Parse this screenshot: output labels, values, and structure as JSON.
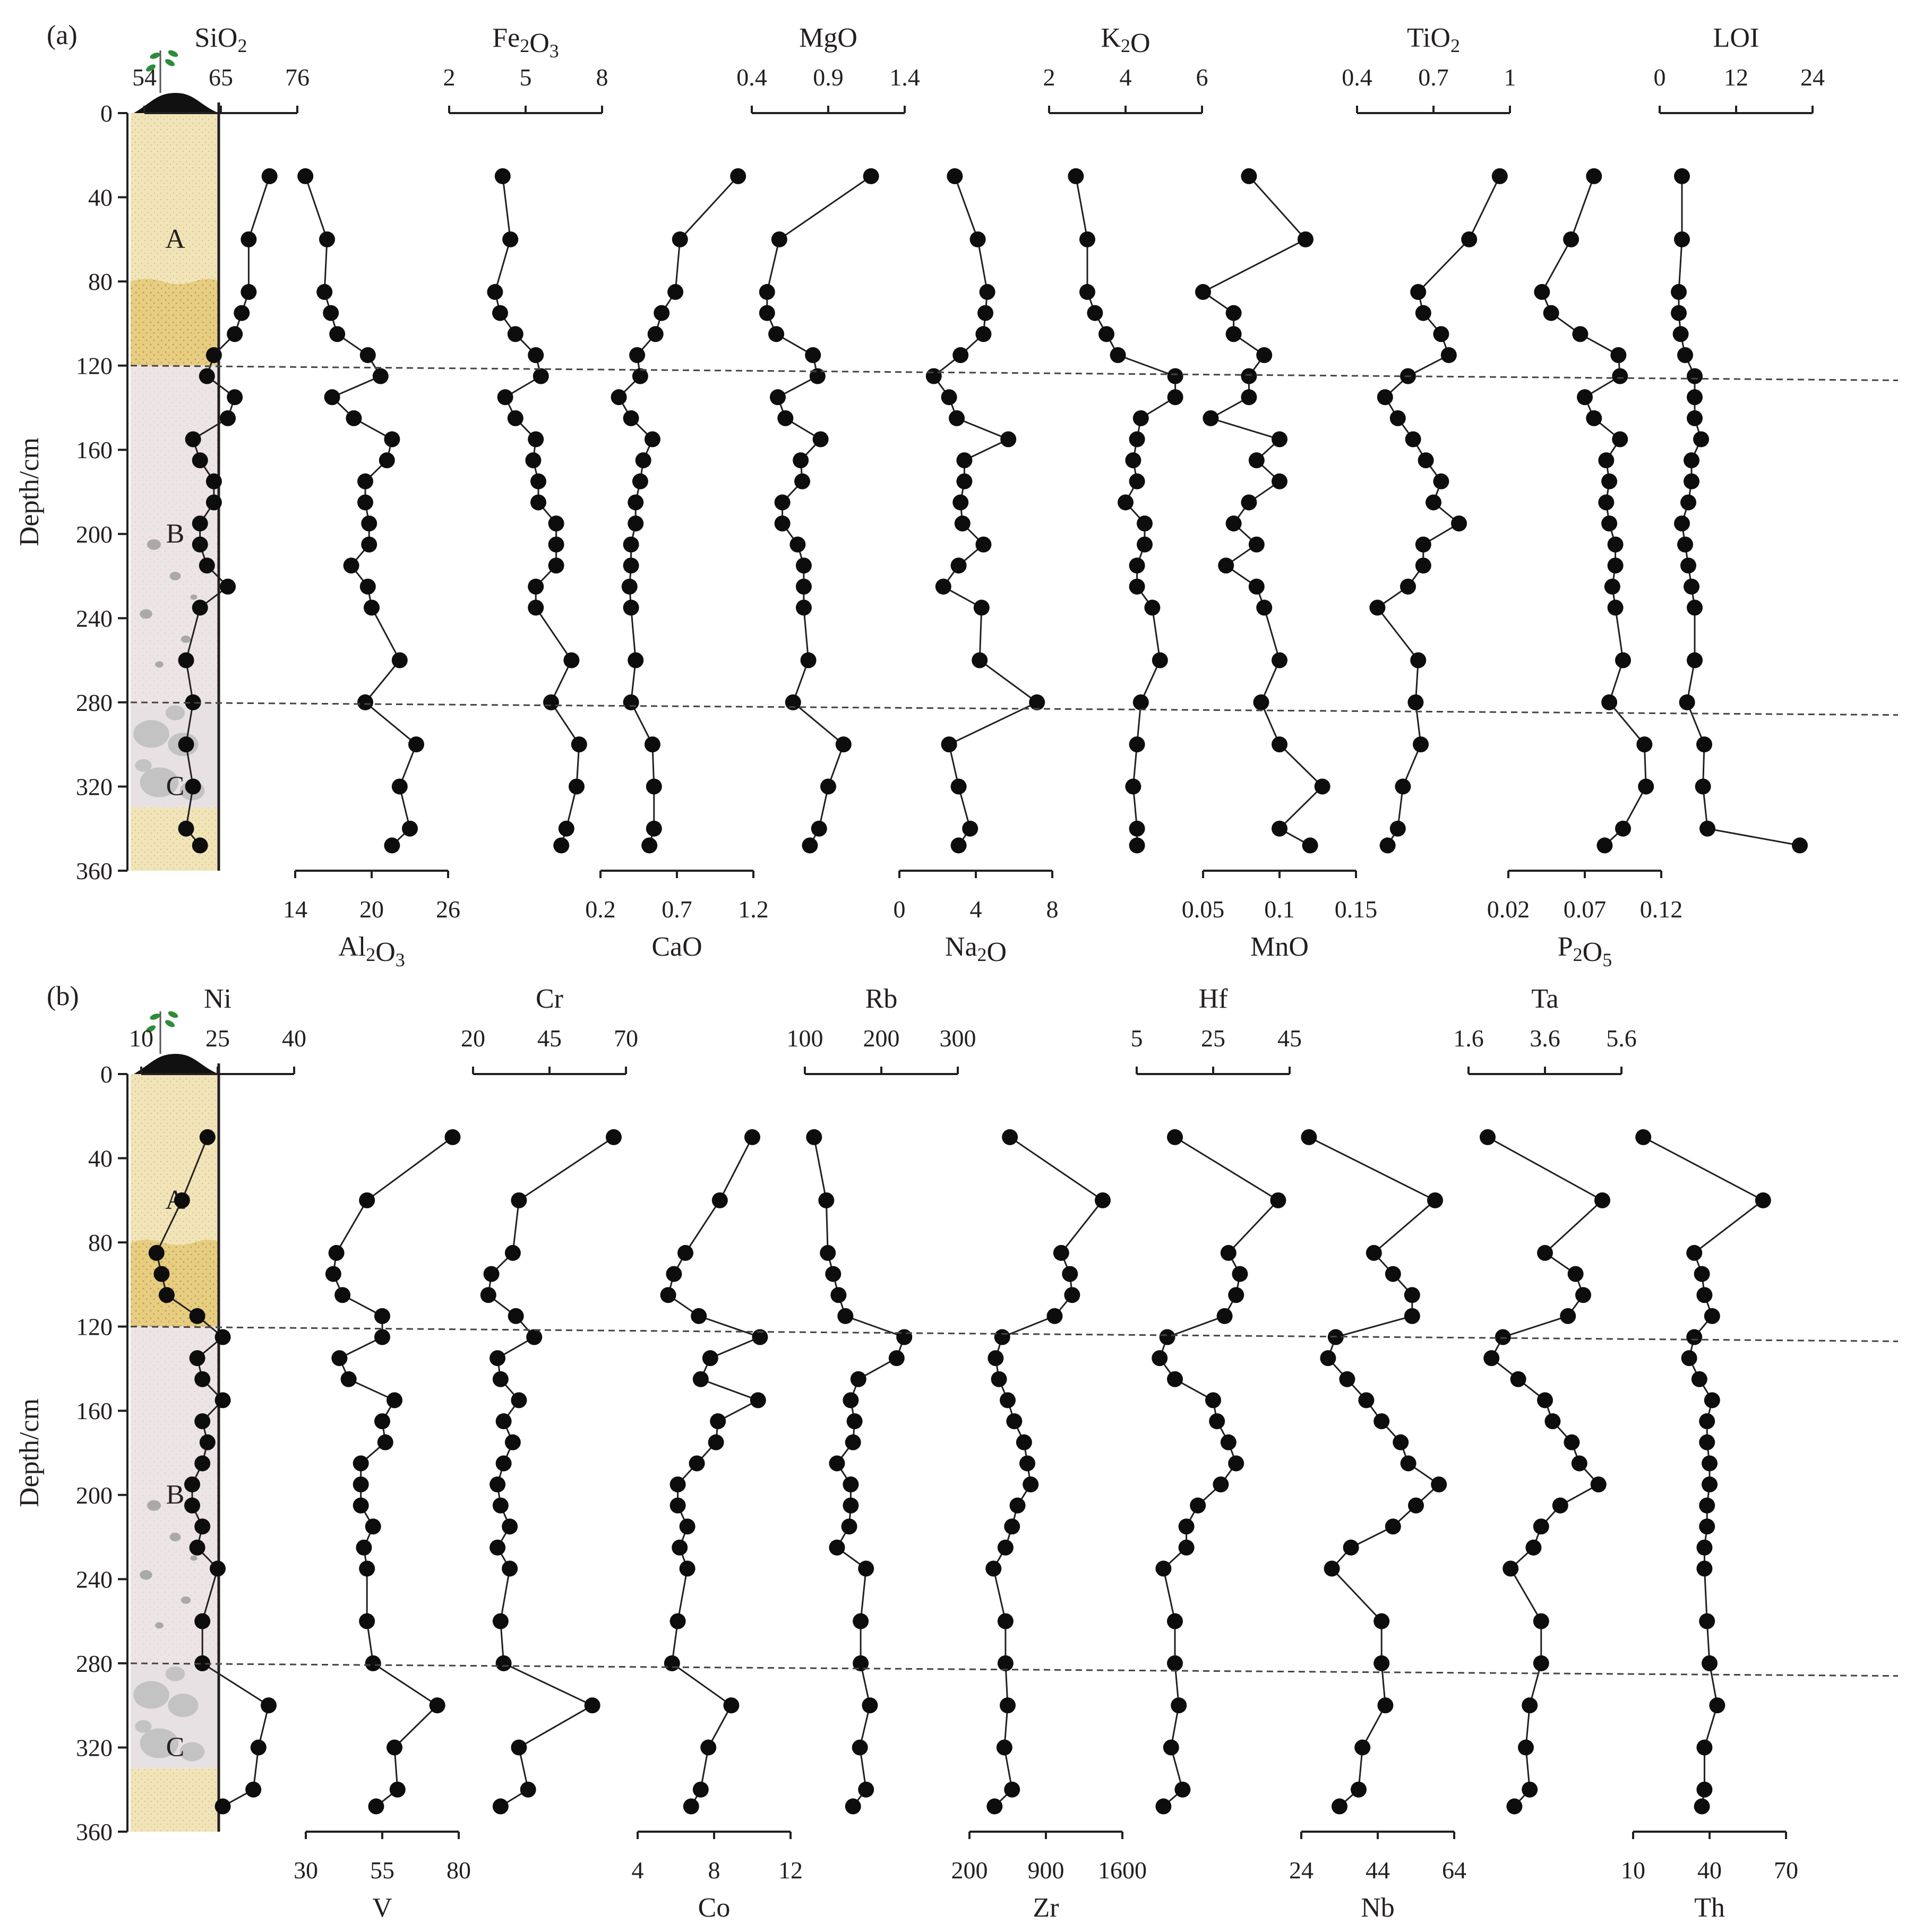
{
  "chart_data": [
    {
      "type": "line",
      "panel_label": "(a)",
      "ylabel": "Depth/cm",
      "ylim": [
        0,
        360
      ],
      "y_ticks": [
        "0",
        "40",
        "80",
        "120",
        "160",
        "200",
        "240",
        "280",
        "320",
        "360"
      ],
      "horizons": [
        "A",
        "B",
        "C"
      ],
      "boundaries": [
        [
          120,
          127
        ],
        [
          280,
          286
        ]
      ],
      "sample_depths": [
        30,
        60,
        85,
        95,
        105,
        115,
        125,
        135,
        145,
        155,
        165,
        175,
        185,
        195,
        205,
        215,
        225,
        235,
        260,
        280,
        300,
        320,
        340,
        348
      ],
      "series": [
        {
          "name": "SiO2",
          "sub": "2",
          "axis": "top",
          "ticks": [
            "54",
            "65",
            "76"
          ],
          "range": [
            54,
            76
          ],
          "values": [
            72,
            69,
            69,
            68,
            67,
            64,
            63,
            67,
            66,
            61,
            62,
            64,
            64,
            62,
            62,
            63,
            66,
            62,
            60,
            61,
            60,
            61,
            60,
            62
          ]
        },
        {
          "name": "Al2O3",
          "sub": "2,3",
          "axis": "bottom",
          "ticks": [
            "14",
            "20",
            "26"
          ],
          "range": [
            14,
            26
          ],
          "values": [
            14.8,
            16.5,
            16.3,
            16.8,
            17.3,
            19.7,
            20.7,
            16.9,
            18.6,
            21.6,
            21.2,
            19.5,
            19.5,
            19.8,
            19.8,
            18.4,
            19.7,
            20.0,
            22.2,
            19.5,
            23.5,
            22.2,
            23.0,
            21.6
          ]
        },
        {
          "name": "Fe2O3",
          "sub": "2,3",
          "axis": "top",
          "ticks": [
            "2",
            "5",
            "8"
          ],
          "range": [
            2,
            8
          ],
          "values": [
            4.1,
            4.4,
            3.8,
            4.0,
            4.6,
            5.4,
            5.6,
            4.2,
            4.6,
            5.4,
            5.3,
            5.5,
            5.5,
            6.2,
            6.2,
            6.2,
            5.4,
            5.4,
            6.8,
            6.0,
            7.1,
            7.0,
            6.6,
            6.4
          ]
        },
        {
          "name": "CaO",
          "sub": "",
          "axis": "bottom",
          "ticks": [
            "0.2",
            "0.7",
            "1.2"
          ],
          "range": [
            0.2,
            1.2
          ],
          "values": [
            1.1,
            0.72,
            0.69,
            0.6,
            0.56,
            0.44,
            0.46,
            0.32,
            0.4,
            0.54,
            0.48,
            0.46,
            0.43,
            0.43,
            0.4,
            0.4,
            0.39,
            0.4,
            0.43,
            0.4,
            0.54,
            0.55,
            0.55,
            0.52
          ]
        },
        {
          "name": "MgO",
          "sub": "",
          "axis": "top",
          "ticks": [
            "0.4",
            "0.9",
            "1.4"
          ],
          "range": [
            0.4,
            1.4
          ],
          "values": [
            1.18,
            0.58,
            0.5,
            0.5,
            0.56,
            0.8,
            0.83,
            0.57,
            0.62,
            0.85,
            0.72,
            0.73,
            0.6,
            0.6,
            0.7,
            0.74,
            0.74,
            0.74,
            0.77,
            0.67,
            1.0,
            0.9,
            0.84,
            0.78
          ]
        },
        {
          "name": "Na2O",
          "sub": "2",
          "axis": "bottom",
          "ticks": [
            "0",
            "4",
            "8"
          ],
          "range": [
            0,
            8
          ],
          "values": [
            2.9,
            4.1,
            4.6,
            4.5,
            4.4,
            3.2,
            1.8,
            2.6,
            3.0,
            5.7,
            3.4,
            3.4,
            3.2,
            3.3,
            4.4,
            3.1,
            2.3,
            4.3,
            4.2,
            7.2,
            2.6,
            3.1,
            3.7,
            3.1
          ]
        },
        {
          "name": "K2O",
          "sub": "2",
          "axis": "top",
          "ticks": [
            "2",
            "4",
            "6"
          ],
          "range": [
            2,
            6
          ],
          "values": [
            2.7,
            3.0,
            3.0,
            3.2,
            3.5,
            3.8,
            5.3,
            5.3,
            4.4,
            4.3,
            4.2,
            4.3,
            4.0,
            4.5,
            4.5,
            4.3,
            4.3,
            4.7,
            4.9,
            4.4,
            4.3,
            4.2,
            4.3,
            4.3
          ]
        },
        {
          "name": "MnO",
          "sub": "",
          "axis": "bottom",
          "ticks": [
            "0.05",
            "0.1",
            "0.15"
          ],
          "range": [
            0.05,
            0.15
          ],
          "values": [
            0.08,
            0.117,
            0.05,
            0.07,
            0.07,
            0.09,
            0.08,
            0.08,
            0.055,
            0.1,
            0.085,
            0.1,
            0.08,
            0.07,
            0.085,
            0.065,
            0.085,
            0.09,
            0.1,
            0.088,
            0.1,
            0.128,
            0.1,
            0.12
          ]
        },
        {
          "name": "TiO2",
          "sub": "2",
          "axis": "top",
          "ticks": [
            "0.4",
            "0.7",
            "1"
          ],
          "range": [
            0.4,
            1.0
          ],
          "values": [
            0.96,
            0.84,
            0.64,
            0.66,
            0.73,
            0.76,
            0.6,
            0.51,
            0.56,
            0.62,
            0.67,
            0.73,
            0.7,
            0.8,
            0.66,
            0.66,
            0.6,
            0.48,
            0.64,
            0.63,
            0.65,
            0.58,
            0.56,
            0.52
          ]
        },
        {
          "name": "P2O5",
          "sub": "2,5",
          "axis": "bottom",
          "ticks": [
            "0.02",
            "0.07",
            "0.12"
          ],
          "range": [
            0.02,
            0.12
          ],
          "values": [
            0.076,
            0.061,
            0.042,
            0.048,
            0.067,
            0.092,
            0.093,
            0.07,
            0.076,
            0.093,
            0.084,
            0.086,
            0.084,
            0.086,
            0.09,
            0.09,
            0.088,
            0.09,
            0.095,
            0.086,
            0.109,
            0.11,
            0.095,
            0.083
          ]
        },
        {
          "name": "LOI",
          "sub": "",
          "axis": "top",
          "ticks": [
            "0",
            "12",
            "24"
          ],
          "range": [
            0,
            24
          ],
          "values": [
            3.5,
            3.5,
            3.0,
            3.0,
            3.3,
            4.0,
            5.5,
            5.5,
            5.5,
            6.5,
            5.0,
            5.0,
            4.5,
            3.5,
            4.0,
            4.5,
            5.0,
            5.5,
            5.5,
            4.3,
            7.0,
            6.8,
            7.5,
            22.0
          ]
        }
      ]
    },
    {
      "type": "line",
      "panel_label": "(b)",
      "ylabel": "Depth/cm",
      "ylim": [
        0,
        360
      ],
      "y_ticks": [
        "0",
        "40",
        "80",
        "120",
        "160",
        "200",
        "240",
        "280",
        "320",
        "360"
      ],
      "horizons": [
        "A",
        "B",
        "C"
      ],
      "boundaries": [
        [
          120,
          127
        ],
        [
          280,
          286
        ]
      ],
      "sample_depths": [
        30,
        60,
        85,
        95,
        105,
        115,
        125,
        135,
        145,
        155,
        165,
        175,
        185,
        195,
        205,
        215,
        225,
        235,
        260,
        280,
        300,
        320,
        340,
        348
      ],
      "series": [
        {
          "name": "Ni",
          "sub": "",
          "axis": "top",
          "ticks": [
            "10",
            "25",
            "40"
          ],
          "range": [
            10,
            40
          ],
          "values": [
            23,
            18,
            13,
            14,
            15,
            21,
            26,
            21,
            22,
            26,
            22,
            23,
            22,
            20,
            20,
            22,
            21,
            25,
            22,
            22,
            35,
            33,
            32,
            26
          ]
        },
        {
          "name": "V",
          "sub": "",
          "axis": "bottom",
          "ticks": [
            "30",
            "55",
            "80"
          ],
          "range": [
            30,
            80
          ],
          "values": [
            78,
            50,
            40,
            39,
            42,
            55,
            55,
            41,
            44,
            59,
            55,
            56,
            48,
            48,
            48,
            52,
            49,
            50,
            50,
            52,
            73,
            59,
            60,
            53
          ]
        },
        {
          "name": "Cr",
          "sub": "",
          "axis": "top",
          "ticks": [
            "20",
            "45",
            "70"
          ],
          "range": [
            20,
            70
          ],
          "values": [
            66,
            35,
            33,
            26,
            25,
            34,
            40,
            28,
            29,
            35,
            30,
            33,
            30,
            28,
            29,
            32,
            28,
            32,
            29,
            30,
            59,
            35,
            38,
            29
          ]
        },
        {
          "name": "Co",
          "sub": "",
          "axis": "bottom",
          "ticks": [
            "4",
            "8",
            "12"
          ],
          "range": [
            4,
            12
          ],
          "values": [
            10.0,
            8.3,
            6.5,
            5.9,
            5.6,
            7.2,
            10.4,
            7.8,
            7.3,
            10.3,
            8.2,
            8.1,
            7.1,
            6.1,
            6.1,
            6.6,
            6.2,
            6.6,
            6.1,
            5.8,
            8.9,
            7.7,
            7.3,
            6.8
          ]
        },
        {
          "name": "Rb",
          "sub": "",
          "axis": "top",
          "ticks": [
            "100",
            "200",
            "300"
          ],
          "range": [
            100,
            300
          ],
          "values": [
            112,
            128,
            130,
            137,
            144,
            153,
            230,
            220,
            170,
            160,
            165,
            163,
            142,
            160,
            160,
            158,
            142,
            180,
            173,
            173,
            185,
            172,
            180,
            163
          ]
        },
        {
          "name": "Zr",
          "sub": "",
          "axis": "bottom",
          "ticks": [
            "200",
            "900",
            "1600"
          ],
          "range": [
            200,
            1600
          ],
          "values": [
            570,
            1420,
            1040,
            1120,
            1140,
            980,
            500,
            440,
            470,
            550,
            610,
            700,
            730,
            760,
            640,
            590,
            530,
            420,
            530,
            530,
            550,
            520,
            590,
            430
          ]
        },
        {
          "name": "Hf",
          "sub": "",
          "axis": "top",
          "ticks": [
            "5",
            "25",
            "45"
          ],
          "range": [
            5,
            45
          ],
          "values": [
            15,
            42,
            29,
            32,
            31,
            28,
            13,
            11,
            15,
            25,
            26,
            29,
            31,
            27,
            21,
            18,
            18,
            12,
            15,
            15,
            16,
            14,
            17,
            12
          ]
        },
        {
          "name": "Nb",
          "sub": "",
          "axis": "bottom",
          "ticks": [
            "24",
            "44",
            "64"
          ],
          "range": [
            24,
            64
          ],
          "values": [
            26,
            59,
            43,
            48,
            53,
            53,
            33,
            31,
            36,
            41,
            45,
            50,
            52,
            60,
            54,
            48,
            37,
            32,
            45,
            45,
            46,
            40,
            39,
            34
          ]
        },
        {
          "name": "Ta",
          "sub": "",
          "axis": "top",
          "ticks": [
            "1.6",
            "3.6",
            "5.6"
          ],
          "range": [
            1.6,
            5.6
          ],
          "values": [
            2.1,
            5.1,
            3.6,
            4.4,
            4.6,
            4.2,
            2.5,
            2.2,
            2.9,
            3.6,
            3.8,
            4.3,
            4.5,
            5.0,
            4.0,
            3.5,
            3.3,
            2.7,
            3.5,
            3.5,
            3.2,
            3.1,
            3.2,
            2.8
          ]
        },
        {
          "name": "Th",
          "sub": "",
          "axis": "bottom",
          "ticks": [
            "10",
            "40",
            "70"
          ],
          "range": [
            10,
            70
          ],
          "values": [
            14,
            61,
            34,
            37,
            38,
            41,
            34,
            32,
            36,
            41,
            39,
            39,
            40,
            40,
            39,
            39,
            38,
            38,
            39,
            40,
            43,
            38,
            38,
            37
          ]
        }
      ]
    }
  ]
}
